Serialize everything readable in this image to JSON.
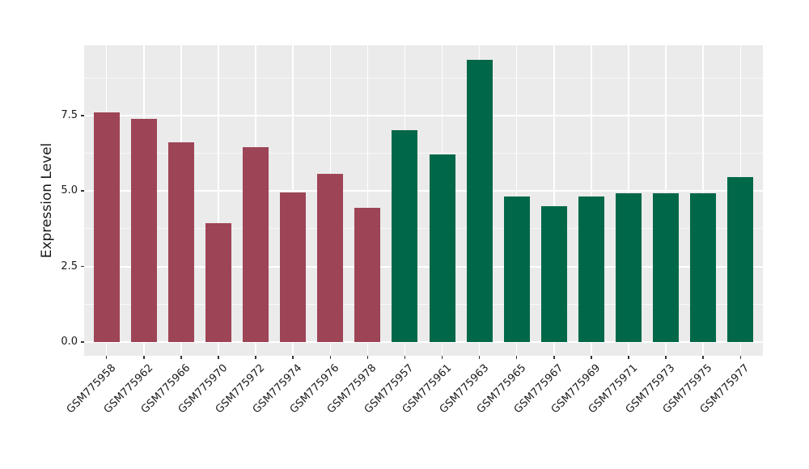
{
  "figure": {
    "background": "#FFFFFF",
    "panel_background": "#EBEBEB",
    "grid_color": "#FFFFFF",
    "axis_text_color": "#1A1A1A",
    "tick_color": "#333333"
  },
  "chart_data": {
    "type": "bar",
    "title": "",
    "xlabel": "",
    "ylabel": "Expression Level",
    "categories": [
      "GSM775958",
      "GSM775962",
      "GSM775966",
      "GSM775970",
      "GSM775972",
      "GSM775974",
      "GSM775976",
      "GSM775978",
      "GSM775957",
      "GSM775961",
      "GSM775963",
      "GSM775965",
      "GSM775967",
      "GSM775969",
      "GSM775971",
      "GSM775973",
      "GSM775975",
      "GSM775977"
    ],
    "values": [
      7.6,
      7.4,
      6.61,
      3.94,
      6.46,
      4.96,
      5.57,
      4.43,
      7.01,
      6.2,
      9.35,
      4.81,
      4.49,
      4.81,
      4.92,
      4.92,
      4.92,
      5.47
    ],
    "bar_color_groups": [
      "maroon",
      "maroon",
      "maroon",
      "maroon",
      "maroon",
      "maroon",
      "maroon",
      "maroon",
      "green",
      "green",
      "green",
      "green",
      "green",
      "green",
      "green",
      "green",
      "green",
      "green"
    ],
    "palette": {
      "maroon": "#9E4457",
      "green": "#006849"
    },
    "yticks": [
      0.0,
      2.5,
      5.0,
      7.5
    ],
    "ytick_labels": [
      "0.0",
      "2.5",
      "5.0",
      "7.5"
    ],
    "yticks_minor": [
      1.25,
      3.75,
      6.25,
      8.75
    ],
    "ylim": [
      -0.45,
      9.82
    ],
    "x_tick_rotation_deg": 45,
    "grid": true,
    "legend": "none",
    "bar_width_fraction": 0.7
  }
}
